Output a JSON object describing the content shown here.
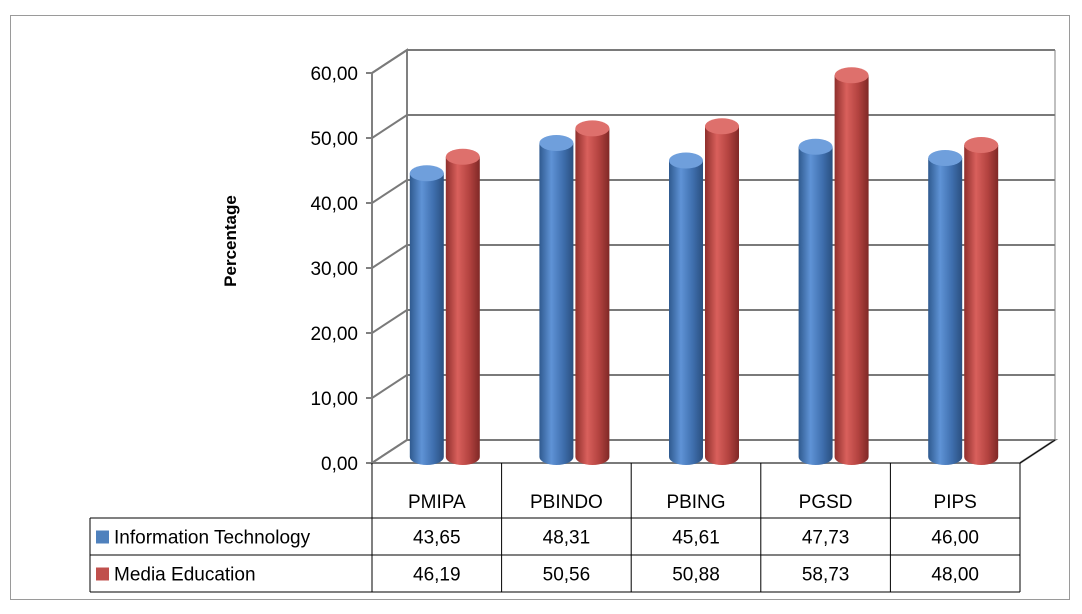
{
  "chart_data": {
    "type": "bar",
    "title": "",
    "xlabel": "",
    "ylabel": "Percentage",
    "ylim": [
      0,
      60
    ],
    "yticks": [
      "0,00",
      "10,00",
      "20,00",
      "30,00",
      "40,00",
      "50,00",
      "60,00"
    ],
    "categories": [
      "PMIPA",
      "PBINDO",
      "PBING",
      "PGSD",
      "PIPS"
    ],
    "series": [
      {
        "name": "Information Technology",
        "color": "#4f81bd",
        "values": [
          43.65,
          48.31,
          45.61,
          47.73,
          46.0
        ],
        "labels": [
          "43,65",
          "48,31",
          "45,61",
          "47,73",
          "46,00"
        ]
      },
      {
        "name": "Media Education",
        "color": "#c0504d",
        "values": [
          46.19,
          50.56,
          50.88,
          58.73,
          48.0
        ],
        "labels": [
          "46,19",
          "50,56",
          "50,88",
          "58,73",
          "48,00"
        ]
      }
    ],
    "grid": true,
    "legend": "data-table",
    "style": "3d-cylinder"
  }
}
